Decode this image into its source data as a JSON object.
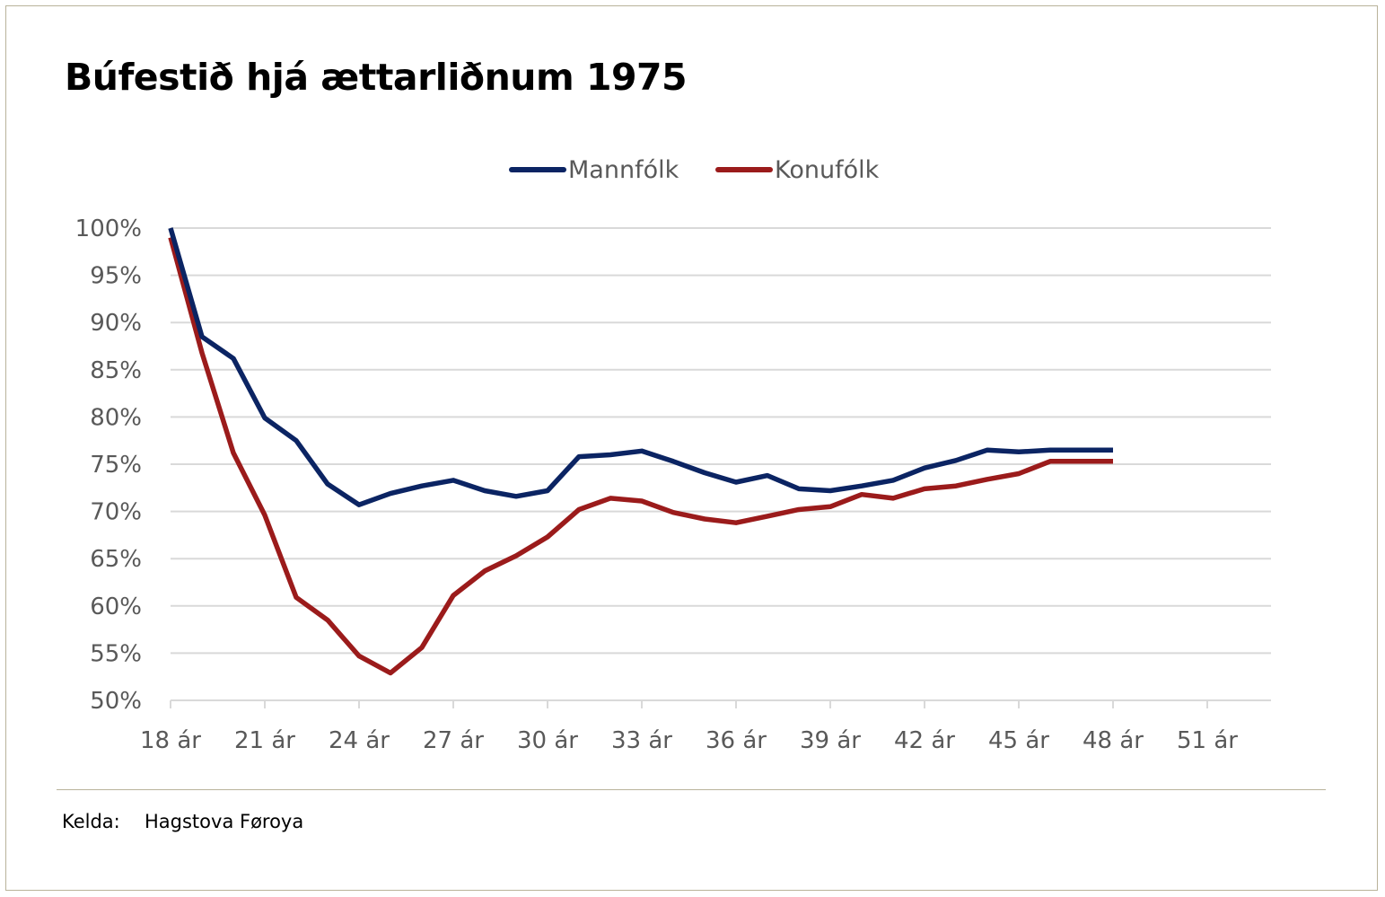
{
  "colors": {
    "men": "#0b2463",
    "women": "#9b1b1b",
    "grid": "#d9d9d9",
    "axis": "#d9d9d9",
    "text": "#595959",
    "frame": "#b9b39a"
  },
  "source": {
    "label": "Kelda:",
    "value": "Hagstova Føroya"
  },
  "chart_data": {
    "type": "line",
    "title": "Búfestið hjá ættarliðnum 1975",
    "xlabel": "",
    "ylabel": "",
    "x": [
      18,
      19,
      20,
      21,
      22,
      23,
      24,
      25,
      26,
      27,
      28,
      29,
      30,
      31,
      32,
      33,
      34,
      35,
      36,
      37,
      38,
      39,
      40,
      41,
      42,
      43,
      44,
      45,
      46,
      47,
      48
    ],
    "xlim": [
      18,
      53
    ],
    "x_ticks": [
      18,
      21,
      24,
      27,
      30,
      33,
      36,
      39,
      42,
      45,
      48,
      51
    ],
    "x_tick_labels": [
      "18 ár",
      "21 ár",
      "24 ár",
      "27 ár",
      "30 ár",
      "33 ár",
      "36 ár",
      "39 ár",
      "42 ár",
      "45 ár",
      "48 ár",
      "51 ár"
    ],
    "ylim": [
      50,
      100
    ],
    "y_ticks": [
      50,
      55,
      60,
      65,
      70,
      75,
      80,
      85,
      90,
      95,
      100
    ],
    "y_tick_labels": [
      "50%",
      "55%",
      "60%",
      "65%",
      "70%",
      "75%",
      "80%",
      "85%",
      "90%",
      "95%",
      "100%"
    ],
    "grid": true,
    "legend_position": "top-center",
    "series": [
      {
        "name": "Mannfólk",
        "color_key": "men",
        "values": [
          100,
          88.5,
          86.2,
          79.9,
          77.5,
          72.9,
          70.7,
          71.9,
          72.7,
          73.3,
          72.2,
          71.6,
          72.2,
          75.8,
          76.0,
          76.4,
          75.3,
          74.1,
          73.1,
          73.8,
          72.4,
          72.2,
          72.7,
          73.3,
          74.6,
          75.4,
          76.5,
          76.3,
          76.5,
          76.5,
          76.5
        ]
      },
      {
        "name": "Konufólk",
        "color_key": "women",
        "values": [
          99.0,
          86.8,
          76.2,
          69.6,
          60.9,
          58.5,
          54.7,
          52.9,
          55.6,
          61.1,
          63.7,
          65.3,
          67.3,
          70.2,
          71.4,
          71.1,
          69.9,
          69.2,
          68.8,
          69.5,
          70.2,
          70.5,
          71.8,
          71.4,
          72.4,
          72.7,
          73.4,
          74.0,
          75.3,
          75.3,
          75.3
        ]
      }
    ]
  }
}
